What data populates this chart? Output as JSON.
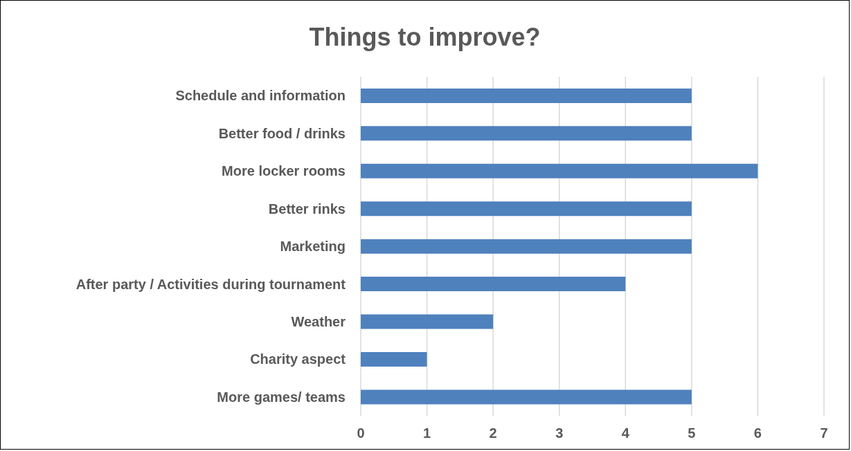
{
  "chart_data": {
    "type": "bar",
    "orientation": "horizontal",
    "title": "Things to improve?",
    "categories": [
      "Schedule and information",
      "Better food / drinks",
      "More locker rooms",
      "Better rinks",
      "Marketing",
      "After party / Activities during tournament",
      "Weather",
      "Charity aspect",
      "More games/ teams"
    ],
    "values": [
      5,
      5,
      6,
      5,
      5,
      4,
      2,
      1,
      5
    ],
    "color": "#4f81bd",
    "xlim": [
      0,
      7
    ],
    "xticks": [
      0,
      1,
      2,
      3,
      4,
      5,
      6,
      7
    ],
    "grid": "x"
  }
}
